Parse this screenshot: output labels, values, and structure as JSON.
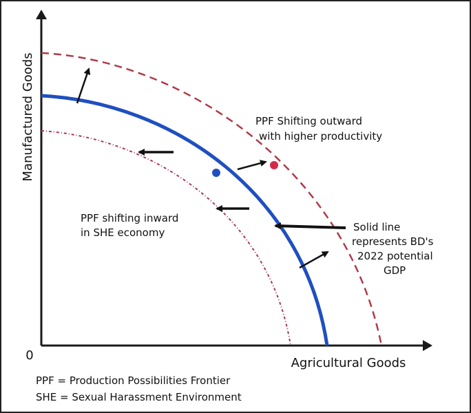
{
  "diagram": {
    "type": "production-possibilities-frontier",
    "y_axis_label": "Manufactured Goods",
    "x_axis_label": "Agricultural Goods",
    "origin_label": "0",
    "annotations": {
      "outward": [
        "PPF Shifting outward",
        "with higher productivity"
      ],
      "inward": [
        "PPF shifting inward",
        "in SHE economy"
      ],
      "solid": [
        "Solid line",
        "represents BD's",
        "2022 potential",
        "GDP"
      ]
    },
    "legend": [
      "PPF = Production Possibilities Frontier",
      "SHE = Sexual Harassment Environment"
    ],
    "colors": {
      "ppf_current": "#1f4fc0",
      "ppf_outer": "#b03a48",
      "ppf_inner": "#a53a55",
      "point_current": "#1f4fc0",
      "point_outer": "#d42a4a",
      "axis": "#1a1a1a",
      "arrow": "#111111"
    }
  }
}
